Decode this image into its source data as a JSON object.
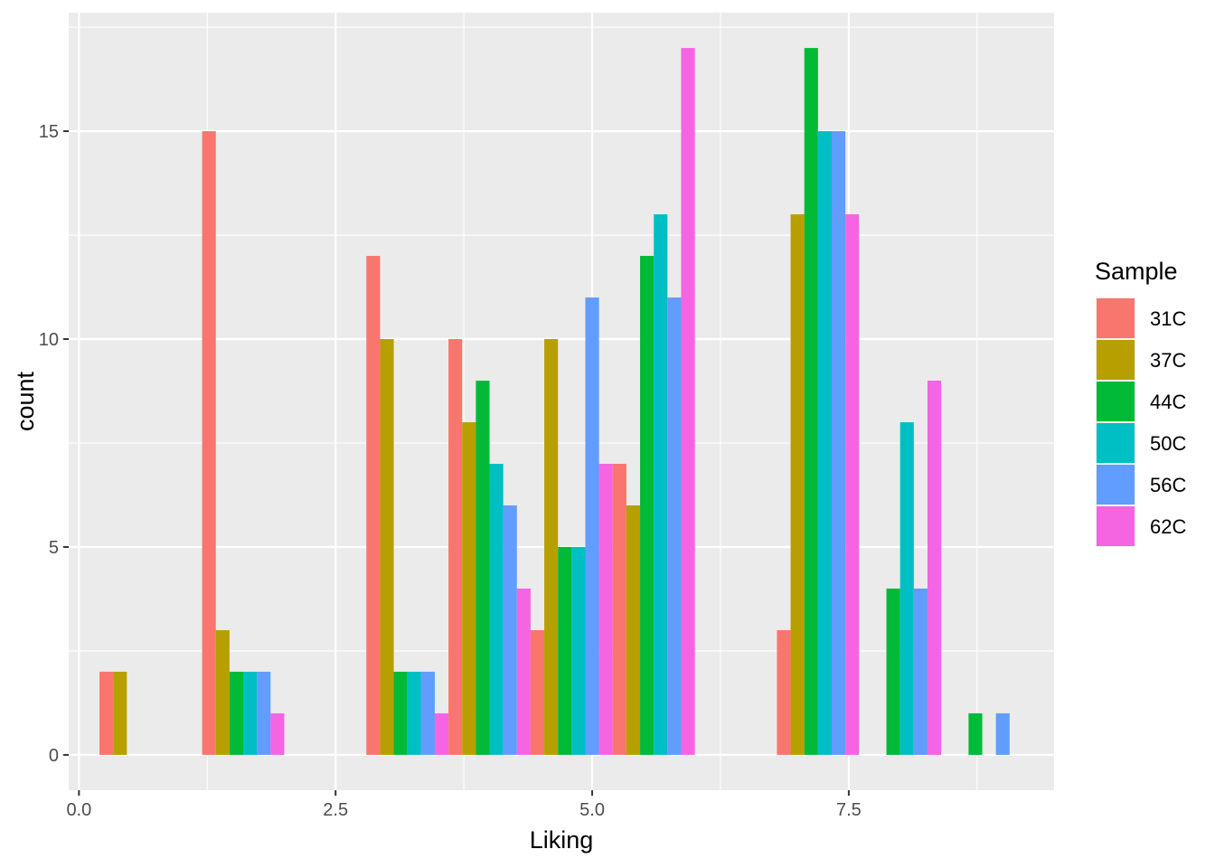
{
  "chart_data": {
    "type": "bar",
    "xlabel": "Liking",
    "ylabel": "count",
    "xlim": [
      -0.1,
      9.5
    ],
    "ylim": [
      -0.85,
      17.85
    ],
    "x_ticks": [
      0.0,
      2.5,
      5.0,
      7.5
    ],
    "x_tick_labels": [
      "0.0",
      "2.5",
      "5.0",
      "7.5"
    ],
    "y_ticks": [
      0,
      5,
      10,
      15
    ],
    "y_tick_labels": [
      "0",
      "5",
      "10",
      "15"
    ],
    "grid": true,
    "legend_title": "Sample",
    "legend_position": "right",
    "bin_width": 0.8,
    "bin_centers": [
      0.6,
      1.6,
      3.2,
      4.0,
      4.8,
      5.6,
      7.2,
      8.0,
      8.8
    ],
    "series": [
      {
        "name": "31C",
        "color": "#F8766D",
        "values": [
          2,
          15,
          12,
          10,
          3,
          7,
          3,
          0,
          0
        ]
      },
      {
        "name": "37C",
        "color": "#B79F00",
        "values": [
          2,
          3,
          10,
          8,
          10,
          6,
          13,
          0,
          0
        ]
      },
      {
        "name": "44C",
        "color": "#00BA38",
        "values": [
          0,
          2,
          2,
          9,
          5,
          12,
          17,
          4,
          1
        ]
      },
      {
        "name": "50C",
        "color": "#00BFC4",
        "values": [
          0,
          2,
          2,
          7,
          5,
          13,
          15,
          8,
          0
        ]
      },
      {
        "name": "56C",
        "color": "#619CFF",
        "values": [
          0,
          2,
          2,
          6,
          11,
          11,
          15,
          4,
          1
        ]
      },
      {
        "name": "62C",
        "color": "#F564E3",
        "values": [
          0,
          1,
          1,
          4,
          7,
          17,
          13,
          9,
          0
        ]
      }
    ]
  }
}
